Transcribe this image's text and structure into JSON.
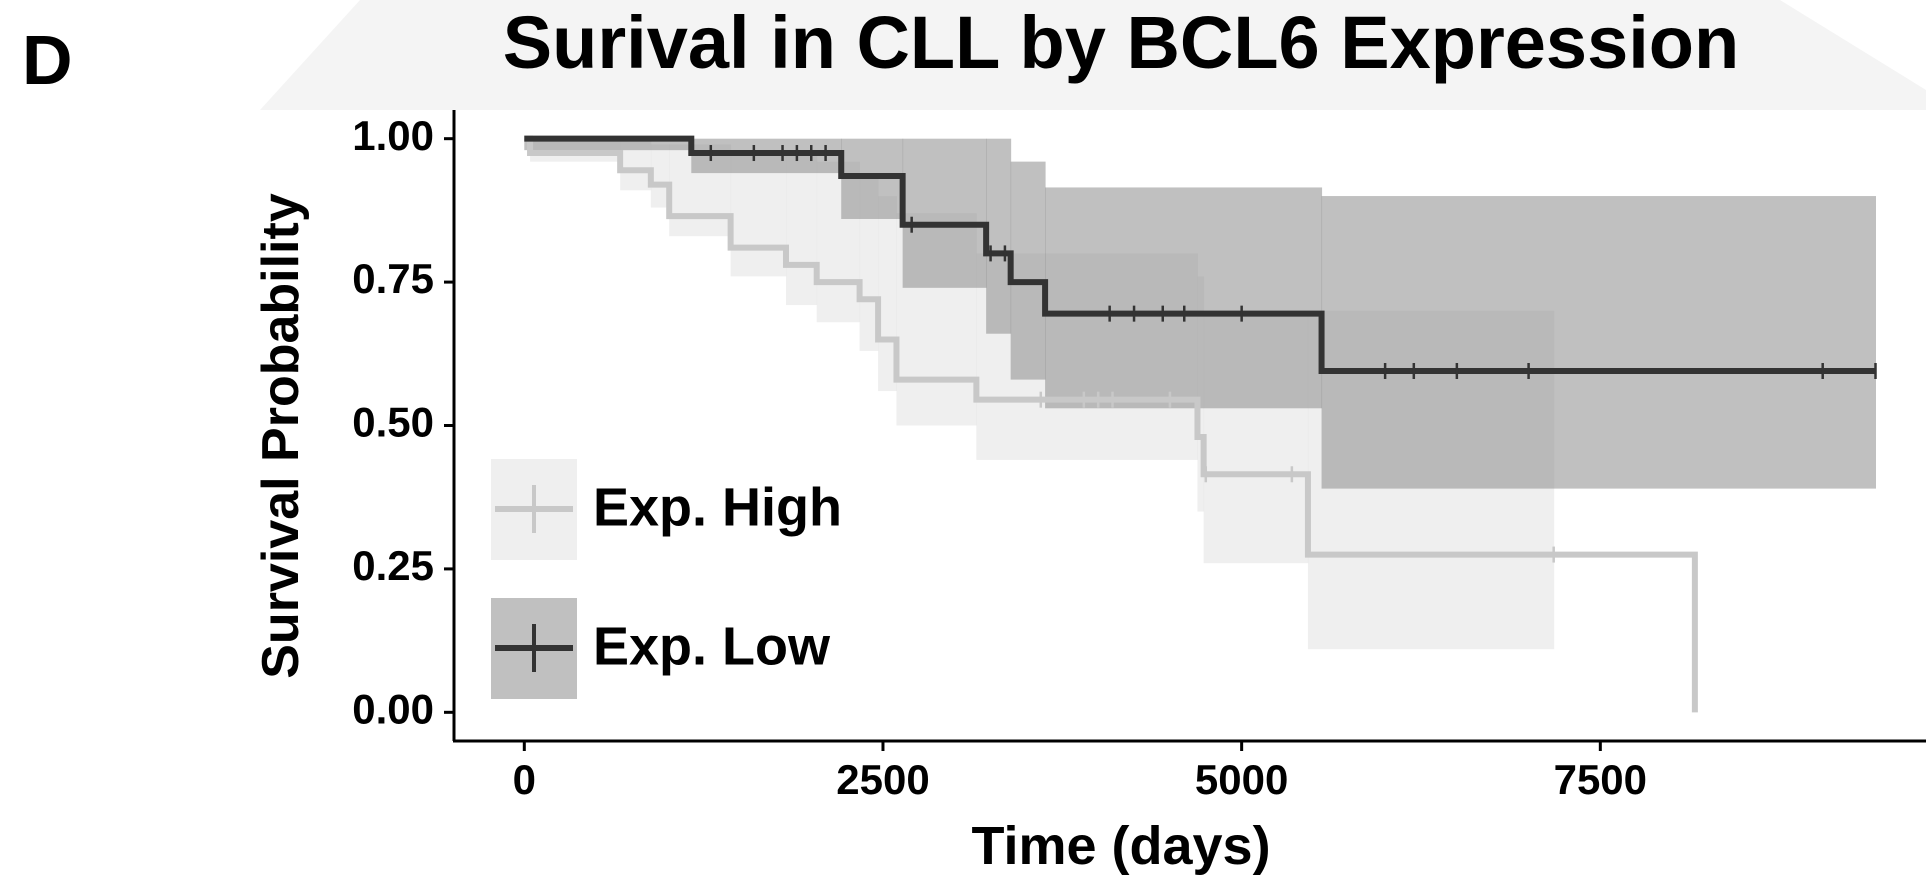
{
  "panel_label": "D",
  "chart_data": {
    "type": "survival",
    "title": "Surival in CLL by BCL6 Expression",
    "x_label": "Time (days)",
    "y_label": "Survival Probability",
    "xlim": [
      -490,
      9770
    ],
    "ylim": [
      -0.05,
      1.05
    ],
    "xticks": [
      0,
      2500,
      5000,
      7500
    ],
    "yticks": [
      {
        "value": 0,
        "label": "0.00"
      },
      {
        "value": 0.25,
        "label": "0.25"
      },
      {
        "value": 0.5,
        "label": "0.50"
      },
      {
        "value": 0.75,
        "label": "0.75"
      },
      {
        "value": 1,
        "label": "1.00"
      }
    ],
    "legend": "bottom-left",
    "series": [
      {
        "name": "Exp. High",
        "color": "#c8c8c8",
        "band_color": "#e2e2e2",
        "x": [
          0,
          40,
          668,
          882,
          1010,
          1438,
          1824,
          2038,
          2337,
          2466,
          2594,
          3151,
          4692,
          4735,
          5462,
          7175,
          8159
        ],
        "values": [
          1.0,
          0.975,
          0.945,
          0.92,
          0.865,
          0.81,
          0.78,
          0.75,
          0.72,
          0.65,
          0.58,
          0.545,
          0.48,
          0.415,
          0.275,
          0.275,
          0
        ],
        "lower": [
          1.0,
          0.96,
          0.91,
          0.88,
          0.83,
          0.76,
          0.71,
          0.68,
          0.63,
          0.56,
          0.5,
          0.44,
          0.35,
          0.26,
          0.11,
          null,
          null
        ],
        "upper": [
          1.0,
          1.0,
          1.0,
          0.99,
          0.99,
          0.98,
          0.97,
          0.96,
          0.93,
          0.9,
          0.87,
          0.8,
          0.76,
          0.7,
          0.7,
          null,
          null
        ],
        "censored": [
          3600,
          3900,
          4000,
          4100,
          4500,
          4750,
          5350,
          7175
        ]
      },
      {
        "name": "Exp. Low",
        "color": "#333333",
        "band_color": "#8c8c8c",
        "x": [
          0,
          1164,
          2209,
          2637,
          3219,
          3390,
          3630,
          5557,
          9418
        ],
        "values": [
          1.0,
          0.975,
          0.935,
          0.85,
          0.8,
          0.75,
          0.695,
          0.595,
          0.595
        ],
        "lower": [
          0.98,
          0.94,
          0.86,
          0.74,
          0.66,
          0.58,
          0.53,
          0.39,
          null
        ],
        "upper": [
          1.0,
          1.0,
          1.0,
          1.0,
          1.0,
          0.96,
          0.915,
          0.9,
          null
        ],
        "censored": [
          1300,
          1600,
          1800,
          1900,
          2000,
          2100,
          2700,
          3250,
          3350,
          4080,
          4250,
          4450,
          4600,
          5000,
          6000,
          6200,
          6500,
          7000,
          9050,
          9418
        ]
      }
    ]
  }
}
